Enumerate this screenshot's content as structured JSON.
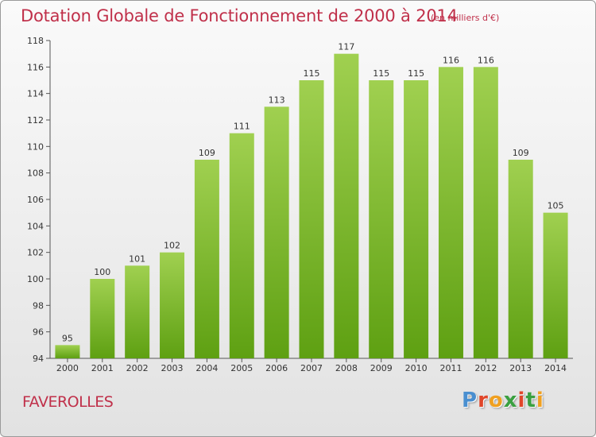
{
  "title": "Dotation Globale de Fonctionnement de 2000 à 2014",
  "subtitle": "(en milliers d'€)",
  "commune": "FAVEROLLES",
  "logo": {
    "text": "Proxiti",
    "colors": [
      "#4a8fd0",
      "#e0462a",
      "#f0a020",
      "#3aa040",
      "#e0462a",
      "#3aa040",
      "#f0a020"
    ]
  },
  "colors": {
    "title": "#c0304a",
    "bar_top": "#a0d050",
    "bar_bottom": "#5ea012",
    "text": "#333333"
  },
  "chart_data": {
    "type": "bar",
    "title": "Dotation Globale de Fonctionnement de 2000 à 2014",
    "subtitle": "(en milliers d'€)",
    "categories": [
      "2000",
      "2001",
      "2002",
      "2003",
      "2004",
      "2005",
      "2006",
      "2007",
      "2008",
      "2009",
      "2010",
      "2011",
      "2012",
      "2013",
      "2014"
    ],
    "values": [
      95,
      100,
      101,
      102,
      109,
      111,
      113,
      115,
      117,
      115,
      115,
      116,
      116,
      109,
      105
    ],
    "ylim": [
      94,
      118
    ],
    "yticks": [
      94,
      96,
      98,
      100,
      102,
      104,
      106,
      108,
      110,
      112,
      114,
      116,
      118
    ],
    "grid": false,
    "legend": "none"
  }
}
